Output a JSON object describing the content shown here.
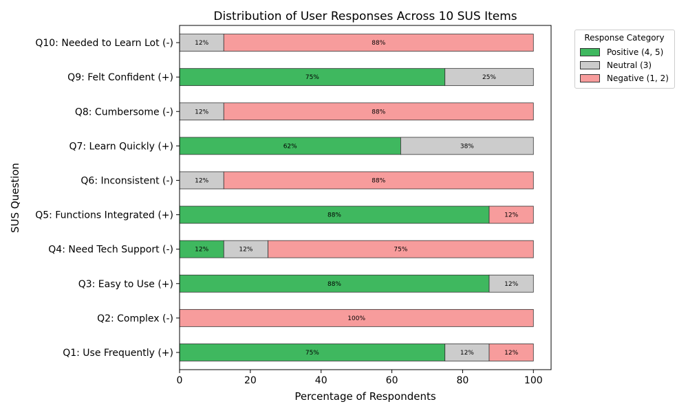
{
  "chart_data": {
    "type": "bar",
    "orientation": "horizontal",
    "stacked": true,
    "title": "Distribution of User Responses Across 10 SUS Items",
    "xlabel": "Percentage of Respondents",
    "ylabel": "SUS Question",
    "xlim": [
      0,
      105
    ],
    "xticks": [
      0,
      20,
      40,
      60,
      80,
      100
    ],
    "grid": false,
    "legend": {
      "title": "Response Category",
      "placement": "outside-top-right"
    },
    "categories": [
      "Q1: Use Frequently (+)",
      "Q2: Complex (-)",
      "Q3: Easy to Use (+)",
      "Q4: Need Tech Support (-)",
      "Q5: Functions Integrated (+)",
      "Q6: Inconsistent (-)",
      "Q7: Learn Quickly (+)",
      "Q8: Cumbersome (-)",
      "Q9: Felt Confident (+)",
      "Q10: Needed to Learn Lot (-)"
    ],
    "series": [
      {
        "name": "Positive (4, 5)",
        "color": "#3fb85f",
        "values": [
          75,
          0,
          87.5,
          12.5,
          87.5,
          0,
          62.5,
          0,
          75,
          0
        ],
        "labels": [
          "75%",
          "",
          "88%",
          "12%",
          "88%",
          "",
          "62%",
          "",
          "75%",
          ""
        ]
      },
      {
        "name": "Neutral (3)",
        "color": "#cccccc",
        "values": [
          12.5,
          0,
          12.5,
          12.5,
          0,
          12.5,
          37.5,
          12.5,
          25,
          12.5
        ],
        "labels": [
          "12%",
          "",
          "12%",
          "12%",
          "",
          "12%",
          "38%",
          "12%",
          "25%",
          "12%"
        ]
      },
      {
        "name": "Negative (1, 2)",
        "color": "#f79c9c",
        "values": [
          12.5,
          100,
          0,
          75,
          12.5,
          87.5,
          0,
          87.5,
          0,
          87.5
        ],
        "labels": [
          "12%",
          "100%",
          "",
          "75%",
          "12%",
          "88%",
          "",
          "88%",
          "",
          "88%"
        ]
      }
    ]
  }
}
